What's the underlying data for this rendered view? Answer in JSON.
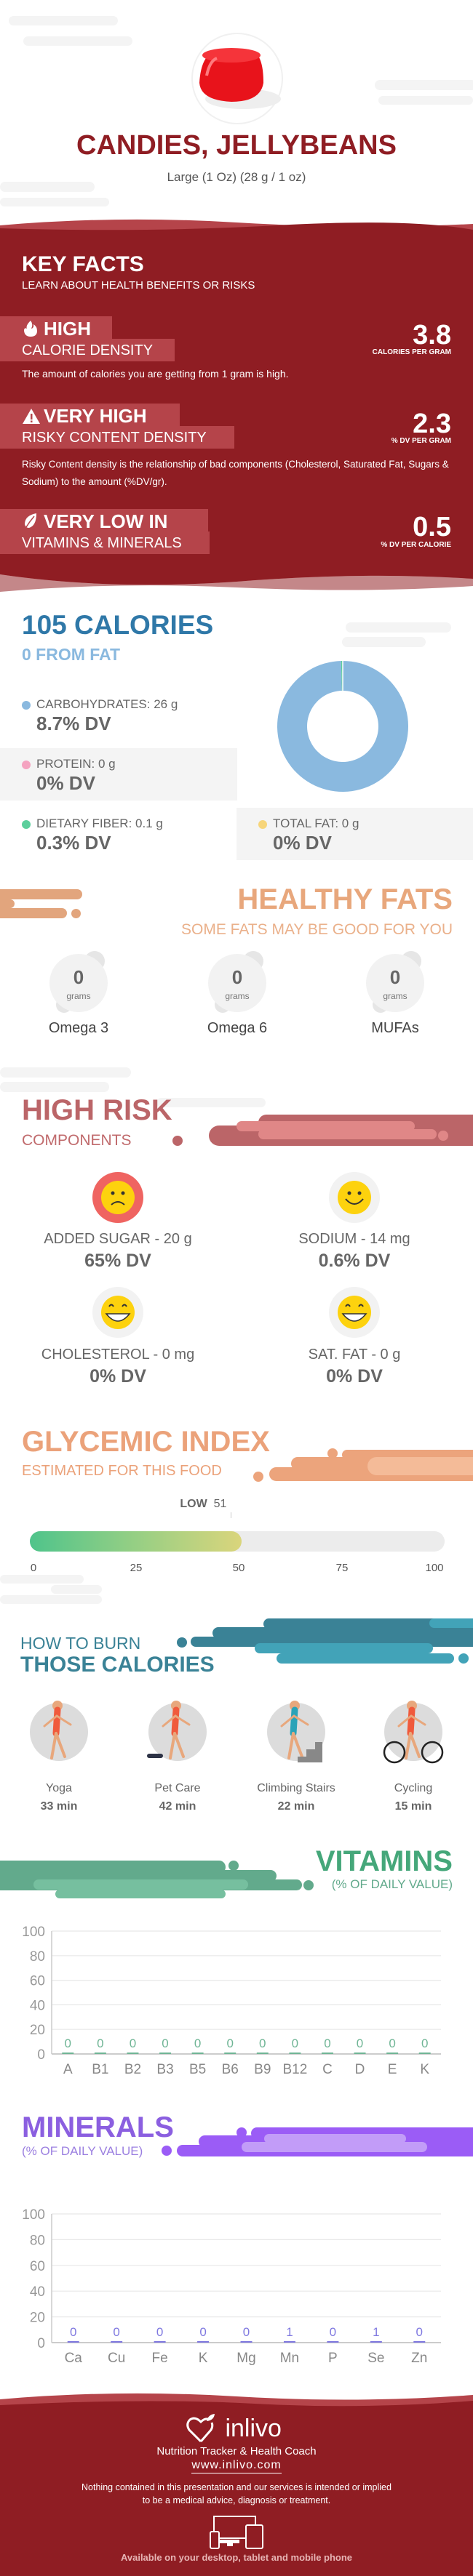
{
  "header": {
    "title": "CANDIES, JELLYBEANS",
    "serving": "Large (1 Oz) (28 g / 1 oz)",
    "image": "red-jelly-dessert"
  },
  "key_facts": {
    "title": "KEY FACTS",
    "subtitle": "LEARN ABOUT HEALTH BENEFITS OR RISKS",
    "items": [
      {
        "icon": "flame-icon",
        "level": "HIGH",
        "label": "CALORIE DENSITY",
        "value": "3.8",
        "unit": "CALORIES PER GRAM",
        "description": "The amount of calories you are getting from 1 gram is high."
      },
      {
        "icon": "warning-icon",
        "level": "VERY HIGH",
        "label": "RISKY CONTENT DENSITY",
        "value": "2.3",
        "unit": "% DV PER GRAM",
        "description": "Risky Content density is the relationship of bad components (Cholesterol, Saturated Fat, Sugars & Sodium) to the amount (%DV/gr)."
      },
      {
        "icon": "leaf-icon",
        "level": "VERY LOW  IN",
        "label": "VITAMINS & MINERALS",
        "value": "0.5",
        "unit": "% DV PER CALORIE"
      }
    ]
  },
  "calories": {
    "title": "105 CALORIES",
    "subtitle": "0 FROM FAT",
    "macros": [
      {
        "label": "CARBOHYDRATES: 26 g",
        "dv": "8.7% DV",
        "color": "#8ab9df"
      },
      {
        "label": "PROTEIN: 0 g",
        "dv": "0% DV",
        "color": "#f4a3c0"
      },
      {
        "label": "DIETARY FIBER: 0.1 g",
        "dv": "0.3% DV",
        "color": "#5ccf9c"
      },
      {
        "label": "TOTAL FAT: 0 g",
        "dv": "0% DV",
        "color": "#f7d57a"
      }
    ]
  },
  "healthy_fats": {
    "title": "HEALTHY FATS",
    "subtitle": "SOME FATS MAY BE GOOD FOR YOU",
    "items": [
      {
        "value": "0",
        "unit": "grams",
        "name": "Omega 3"
      },
      {
        "value": "0",
        "unit": "grams",
        "name": "Omega 6"
      },
      {
        "value": "0",
        "unit": "grams",
        "name": "MUFAs"
      }
    ]
  },
  "high_risk": {
    "title": "HIGH RISK",
    "subtitle": "COMPONENTS",
    "items": [
      {
        "label": "ADDED SUGAR - 20 g",
        "dv": "65% DV",
        "face": "sad-face-icon"
      },
      {
        "label": "SODIUM - 14 mg",
        "dv": "0.6% DV",
        "face": "smile-face-icon"
      },
      {
        "label": "CHOLESTEROL - 0 mg",
        "dv": "0% DV",
        "face": "grin-face-icon"
      },
      {
        "label": "SAT. FAT - 0 g",
        "dv": "0% DV",
        "face": "grin-face-icon"
      }
    ]
  },
  "glycemic": {
    "title": "GLYCEMIC INDEX",
    "subtitle": "ESTIMATED FOR THIS FOOD",
    "rating": "LOW",
    "value": 51,
    "ticks": [
      "0",
      "25",
      "50",
      "75",
      "100"
    ]
  },
  "burn": {
    "title_line1": "HOW TO BURN",
    "title_line2": "THOSE CALORIES",
    "activities": [
      {
        "name": "Yoga",
        "duration": "33 min"
      },
      {
        "name": "Pet Care",
        "duration": "42 min"
      },
      {
        "name": "Climbing Stairs",
        "duration": "22 min"
      },
      {
        "name": "Cycling",
        "duration": "15 min"
      }
    ]
  },
  "vitamins": {
    "title": "VITAMINS",
    "subtitle": "(% OF DAILY VALUE)"
  },
  "minerals": {
    "title": "MINERALS",
    "subtitle": "(% OF DAILY VALUE)"
  },
  "chart_data": [
    {
      "type": "pie",
      "categories": [
        "Carbohydrates",
        "Protein",
        "Dietary Fiber",
        "Total Fat"
      ],
      "values": [
        26,
        0,
        0.1,
        0
      ],
      "colors": [
        "#8ab9df",
        "#f4a3c0",
        "#5ccf9c",
        "#f7d57a"
      ]
    },
    {
      "type": "bar",
      "categories": [
        "A",
        "B1",
        "B2",
        "B3",
        "B5",
        "B6",
        "B9",
        "B12",
        "C",
        "D",
        "E",
        "K"
      ],
      "values": [
        0,
        0,
        0,
        0,
        0,
        0,
        0,
        0,
        0,
        0,
        0,
        0
      ],
      "ylim": [
        0,
        100
      ],
      "yticks": [
        0,
        20,
        40,
        60,
        80,
        100
      ],
      "grid": true,
      "color": "#6fb595"
    },
    {
      "type": "bar",
      "categories": [
        "Ca",
        "Cu",
        "Fe",
        "K",
        "Mg",
        "Mn",
        "P",
        "Se",
        "Zn"
      ],
      "values": [
        0,
        0,
        0,
        0,
        0,
        1,
        0,
        1,
        0
      ],
      "ylim": [
        0,
        100
      ],
      "yticks": [
        0,
        20,
        40,
        60,
        80,
        100
      ],
      "grid": true,
      "color": "#7f78e0"
    }
  ],
  "footer": {
    "brand": "inlivo",
    "tagline": "Nutrition Tracker & Health Coach",
    "url": "www.inlivo.com",
    "disclaimer_line1": "Nothing contained in this presentation and our services is intended or implied",
    "disclaimer_line2": "to be a medical advice, diagnosis or treatment.",
    "availability": "Available on your desktop, tablet and mobile phone"
  },
  "colors": {
    "brand_red": "#8f1d23",
    "calories_blue": "#2f78a8",
    "healthy_fats": "#e8a77c",
    "high_risk": "#bb6568",
    "glycemic": "#eba27a",
    "burn_teal": "#3a8296",
    "vitamins_green": "#45a77a",
    "minerals_purple": "#8b5fe0"
  }
}
